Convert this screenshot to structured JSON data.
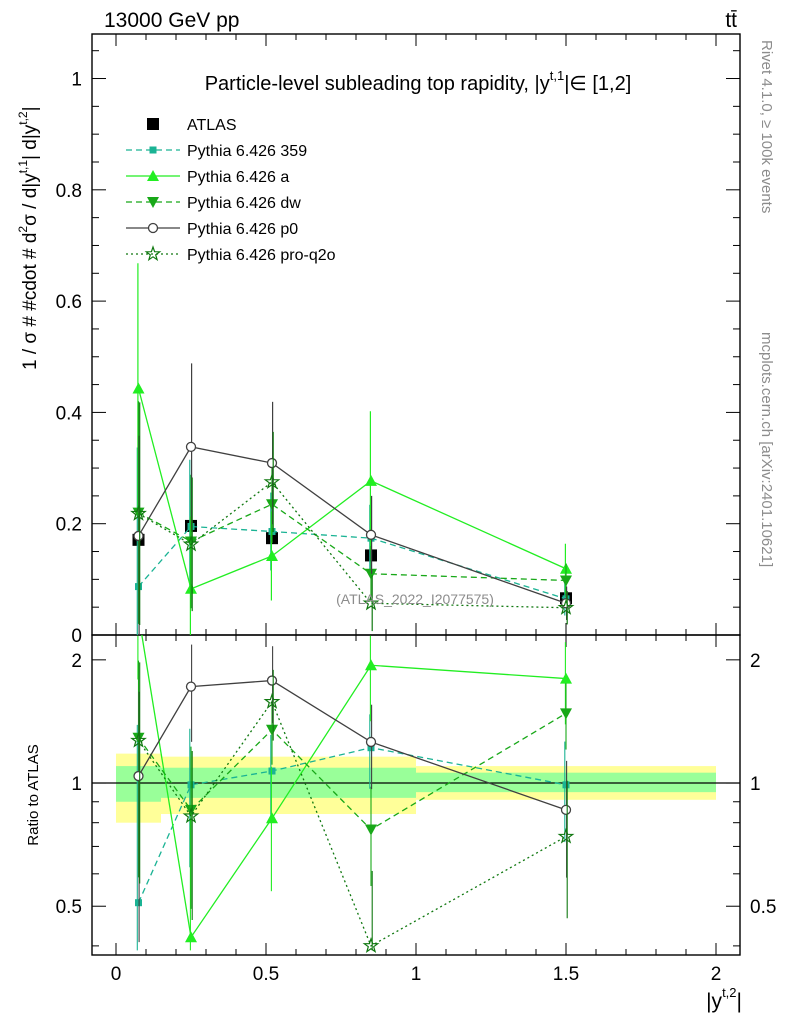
{
  "header": {
    "energy_label": "13000 GeV pp",
    "process_label": "tt̄"
  },
  "side_labels": {
    "rivet": "Rivet 4.1.0, ≥ 100k events",
    "mcplots": "mcplots.cern.ch [arXiv:2401.10621]"
  },
  "chart_data": [
    {
      "panel": "main",
      "type": "line",
      "title": "Particle-level subleading top rapidity, |y^{t,1}| ∈ [1,2]",
      "title_text": "Particle-level subleading top rapidity, |y",
      "title_sup": "t,1",
      "title_tail": "|∈ [1,2]",
      "ylabel": "1 / σ # #cdot # d²σ / d|y^{t,1}| d|y^{t,2}|",
      "ylabel_text": "1 / σ # #cdot # d",
      "ylabel_parts": [
        "2",
        "σ / d|y",
        "t,1",
        "| d|y",
        "t,2",
        "|"
      ],
      "xlabel": "|y^{t,2}|",
      "xlim": [
        -0.08,
        2.08
      ],
      "ylim": [
        0,
        1.08
      ],
      "yticks": [
        0,
        0.2,
        0.4,
        0.6,
        0.8,
        1
      ],
      "ytick_labels": [
        "0",
        "0.2",
        "0.4",
        "0.6",
        "0.8",
        "1"
      ],
      "watermark": "(ATLAS_2022_I2077575)",
      "x": [
        0.075,
        0.25,
        0.52,
        0.85,
        1.5
      ],
      "bin_edges": [
        0,
        0.15,
        0.35,
        0.7,
        1.0,
        2.0
      ],
      "series": [
        {
          "name": "ATLAS",
          "color": "#000000",
          "marker": "square",
          "line": "none",
          "values": [
            0.171,
            0.196,
            0.174,
            0.143,
            0.066
          ]
        },
        {
          "name": "Pythia 6.426 359",
          "color": "#1ab394",
          "marker": "smallsquare",
          "line": "dashed",
          "values": [
            0.087,
            0.195,
            0.186,
            0.174,
            0.065
          ],
          "err": [
            0.25,
            0.12,
            0.07,
            0.06,
            0.03
          ]
        },
        {
          "name": "Pythia 6.426 a",
          "color": "#22ee22",
          "marker": "triangle-up",
          "line": "solid",
          "values": [
            0.443,
            0.083,
            0.142,
            0.277,
            0.119
          ],
          "err": [
            0.225,
            0.13,
            0.08,
            0.125,
            0.045
          ]
        },
        {
          "name": "Pythia 6.426 dw",
          "color": "#18a818",
          "marker": "triangle-down",
          "line": "dashed",
          "values": [
            0.22,
            0.168,
            0.235,
            0.11,
            0.098
          ],
          "err": [
            0.2,
            0.12,
            0.07,
            0.05,
            0.03
          ]
        },
        {
          "name": "Pythia 6.426 p0",
          "color": "#404040",
          "marker": "circle",
          "line": "solid",
          "values": [
            0.178,
            0.338,
            0.309,
            0.18,
            0.057
          ],
          "err": [
            0.18,
            0.15,
            0.11,
            0.07,
            0.03
          ]
        },
        {
          "name": "Pythia 6.426 pro-q2o",
          "color": "#107810",
          "marker": "star",
          "line": "dotted",
          "values": [
            0.218,
            0.163,
            0.275,
            0.057,
            0.049
          ],
          "err": [
            0.2,
            0.12,
            0.09,
            0.05,
            0.03
          ]
        }
      ]
    },
    {
      "panel": "ratio",
      "type": "line",
      "ylabel": "Ratio to ATLAS",
      "xlabel": "|y^{t,2}|",
      "xlabel_text": "|y",
      "xlabel_sup": "t,2",
      "xlabel_tail": "|",
      "xlim": [
        -0.08,
        2.08
      ],
      "ylim": [
        0.38,
        2.3
      ],
      "yticks": [
        0.5,
        1,
        2
      ],
      "ytick_labels": [
        "0.5",
        "1",
        "2"
      ],
      "xticks": [
        0,
        0.5,
        1,
        1.5,
        2
      ],
      "xtick_labels": [
        "0",
        "0.5",
        "1",
        "1.5",
        "2"
      ],
      "band_inner": [
        [
          0.9,
          1.1
        ],
        [
          0.92,
          1.09
        ],
        [
          0.92,
          1.09
        ],
        [
          0.92,
          1.09
        ],
        [
          0.95,
          1.06
        ]
      ],
      "band_outer": [
        [
          0.8,
          1.18
        ],
        [
          0.84,
          1.16
        ],
        [
          0.84,
          1.16
        ],
        [
          0.84,
          1.16
        ],
        [
          0.91,
          1.1
        ]
      ],
      "x": [
        0.075,
        0.25,
        0.52,
        0.85,
        1.5
      ],
      "series": [
        {
          "name": "Pythia 6.426 359",
          "values": [
            0.51,
            0.99,
            1.07,
            1.22,
            0.99
          ]
        },
        {
          "name": "Pythia 6.426 a",
          "values": [
            2.58,
            0.42,
            0.82,
            1.94,
            1.8
          ]
        },
        {
          "name": "Pythia 6.426 dw",
          "values": [
            1.29,
            0.86,
            1.35,
            0.77,
            1.48
          ]
        },
        {
          "name": "Pythia 6.426 p0",
          "values": [
            1.04,
            1.72,
            1.78,
            1.26,
            0.86
          ]
        },
        {
          "name": "Pythia 6.426 pro-q2o",
          "values": [
            1.27,
            0.83,
            1.58,
            0.4,
            0.74
          ]
        }
      ]
    }
  ]
}
